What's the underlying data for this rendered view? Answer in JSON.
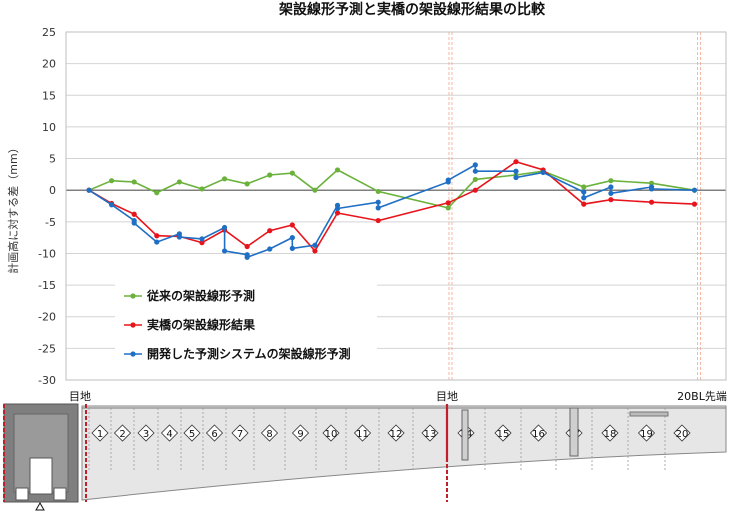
{
  "chart_data": {
    "type": "line",
    "title": "架設線形予測と実橋の架設線形結果の比較",
    "ylabel": "計画高に対する差（mm）",
    "ylim": [
      -30,
      25
    ],
    "yticks": [
      25,
      20,
      15,
      10,
      5,
      0,
      -5,
      -10,
      -15,
      -20,
      -25,
      -30
    ],
    "grid": true,
    "legend_position": "lower-left",
    "x_range": [
      0,
      27
    ],
    "vlines": [
      16.0,
      27.0
    ],
    "series": [
      {
        "name": "従来の架設線形予測",
        "color": "#6ab23b",
        "points": [
          [
            0,
            0
          ],
          [
            1,
            1.5
          ],
          [
            2,
            1.3
          ],
          [
            3,
            -0.4
          ],
          [
            4,
            1.3
          ],
          [
            5,
            0.2
          ],
          [
            6,
            1.8
          ],
          [
            7,
            1.0
          ],
          [
            8,
            2.4
          ],
          [
            9,
            2.7
          ],
          [
            10,
            0
          ],
          [
            11,
            3.2
          ],
          [
            12.8,
            -0.2
          ],
          [
            15.9,
            -2.8
          ],
          [
            17.1,
            1.7
          ],
          [
            18.9,
            2.4
          ],
          [
            20.1,
            3.0
          ],
          [
            21.9,
            0.5
          ],
          [
            23.1,
            1.5
          ],
          [
            24.9,
            1.1
          ],
          [
            26.8,
            0
          ]
        ]
      },
      {
        "name": "実橋の架設線形結果",
        "color": "#e8141c",
        "points": [
          [
            0,
            0
          ],
          [
            1,
            -2.1
          ],
          [
            2,
            -3.8
          ],
          [
            3,
            -7.2
          ],
          [
            4,
            -7.3
          ],
          [
            5,
            -8.3
          ],
          [
            6,
            -6.3
          ],
          [
            7,
            -8.9
          ],
          [
            8,
            -6.4
          ],
          [
            9,
            -5.5
          ],
          [
            10,
            -9.6
          ],
          [
            11,
            -3.6
          ],
          [
            12.8,
            -4.8
          ],
          [
            15.9,
            -2.0
          ],
          [
            17.1,
            0
          ],
          [
            18.9,
            4.5
          ],
          [
            20.1,
            3.2
          ],
          [
            21.9,
            -2.2
          ],
          [
            23.1,
            -1.5
          ],
          [
            24.9,
            -1.9
          ],
          [
            26.8,
            -2.2
          ]
        ]
      },
      {
        "name": "開発した予測システムの架設線形予測",
        "color": "#1f6fc5",
        "points": [
          [
            0,
            0
          ],
          [
            1,
            -2.3
          ],
          [
            2,
            -4.8
          ],
          [
            2,
            -5.2
          ],
          [
            3,
            -8.2
          ],
          [
            4,
            -6.9
          ],
          [
            4,
            -7.4
          ],
          [
            5,
            -7.7
          ],
          [
            6,
            -5.9
          ],
          [
            6,
            -9.6
          ],
          [
            7,
            -10.2
          ],
          [
            7,
            -10.6
          ],
          [
            8,
            -9.3
          ],
          [
            9,
            -7.5
          ],
          [
            9,
            -9.2
          ],
          [
            10,
            -8.7
          ],
          [
            11,
            -2.4
          ],
          [
            11,
            -2.9
          ],
          [
            12.8,
            -1.9
          ],
          [
            12.8,
            -2.8
          ],
          [
            15.9,
            1.3
          ],
          [
            15.9,
            1.6
          ],
          [
            17.1,
            4.0
          ],
          [
            17.1,
            3.0
          ],
          [
            18.9,
            3.0
          ],
          [
            18.9,
            2.0
          ],
          [
            20.1,
            2.8
          ],
          [
            21.9,
            -0.3
          ],
          [
            21.9,
            -1.2
          ],
          [
            23.1,
            0.5
          ],
          [
            23.1,
            -0.5
          ],
          [
            24.9,
            0.5
          ],
          [
            24.9,
            0.2
          ],
          [
            26.8,
            0
          ]
        ]
      }
    ]
  },
  "diagram": {
    "left_label": "目地",
    "mid_label": "目地",
    "right_label": "20BL先端",
    "segments": [
      "1",
      "2",
      "3",
      "4",
      "5",
      "6",
      "7",
      "8",
      "9",
      "10",
      "11",
      "12",
      "13",
      "14",
      "15",
      "16",
      "17",
      "18",
      "19",
      "20"
    ]
  },
  "colors": {
    "grid": "#d4d4d4",
    "vline": "#f5a78d",
    "joint": "#c0202a",
    "girder": "#e6e6e6",
    "pier": "#8a8a8a"
  }
}
